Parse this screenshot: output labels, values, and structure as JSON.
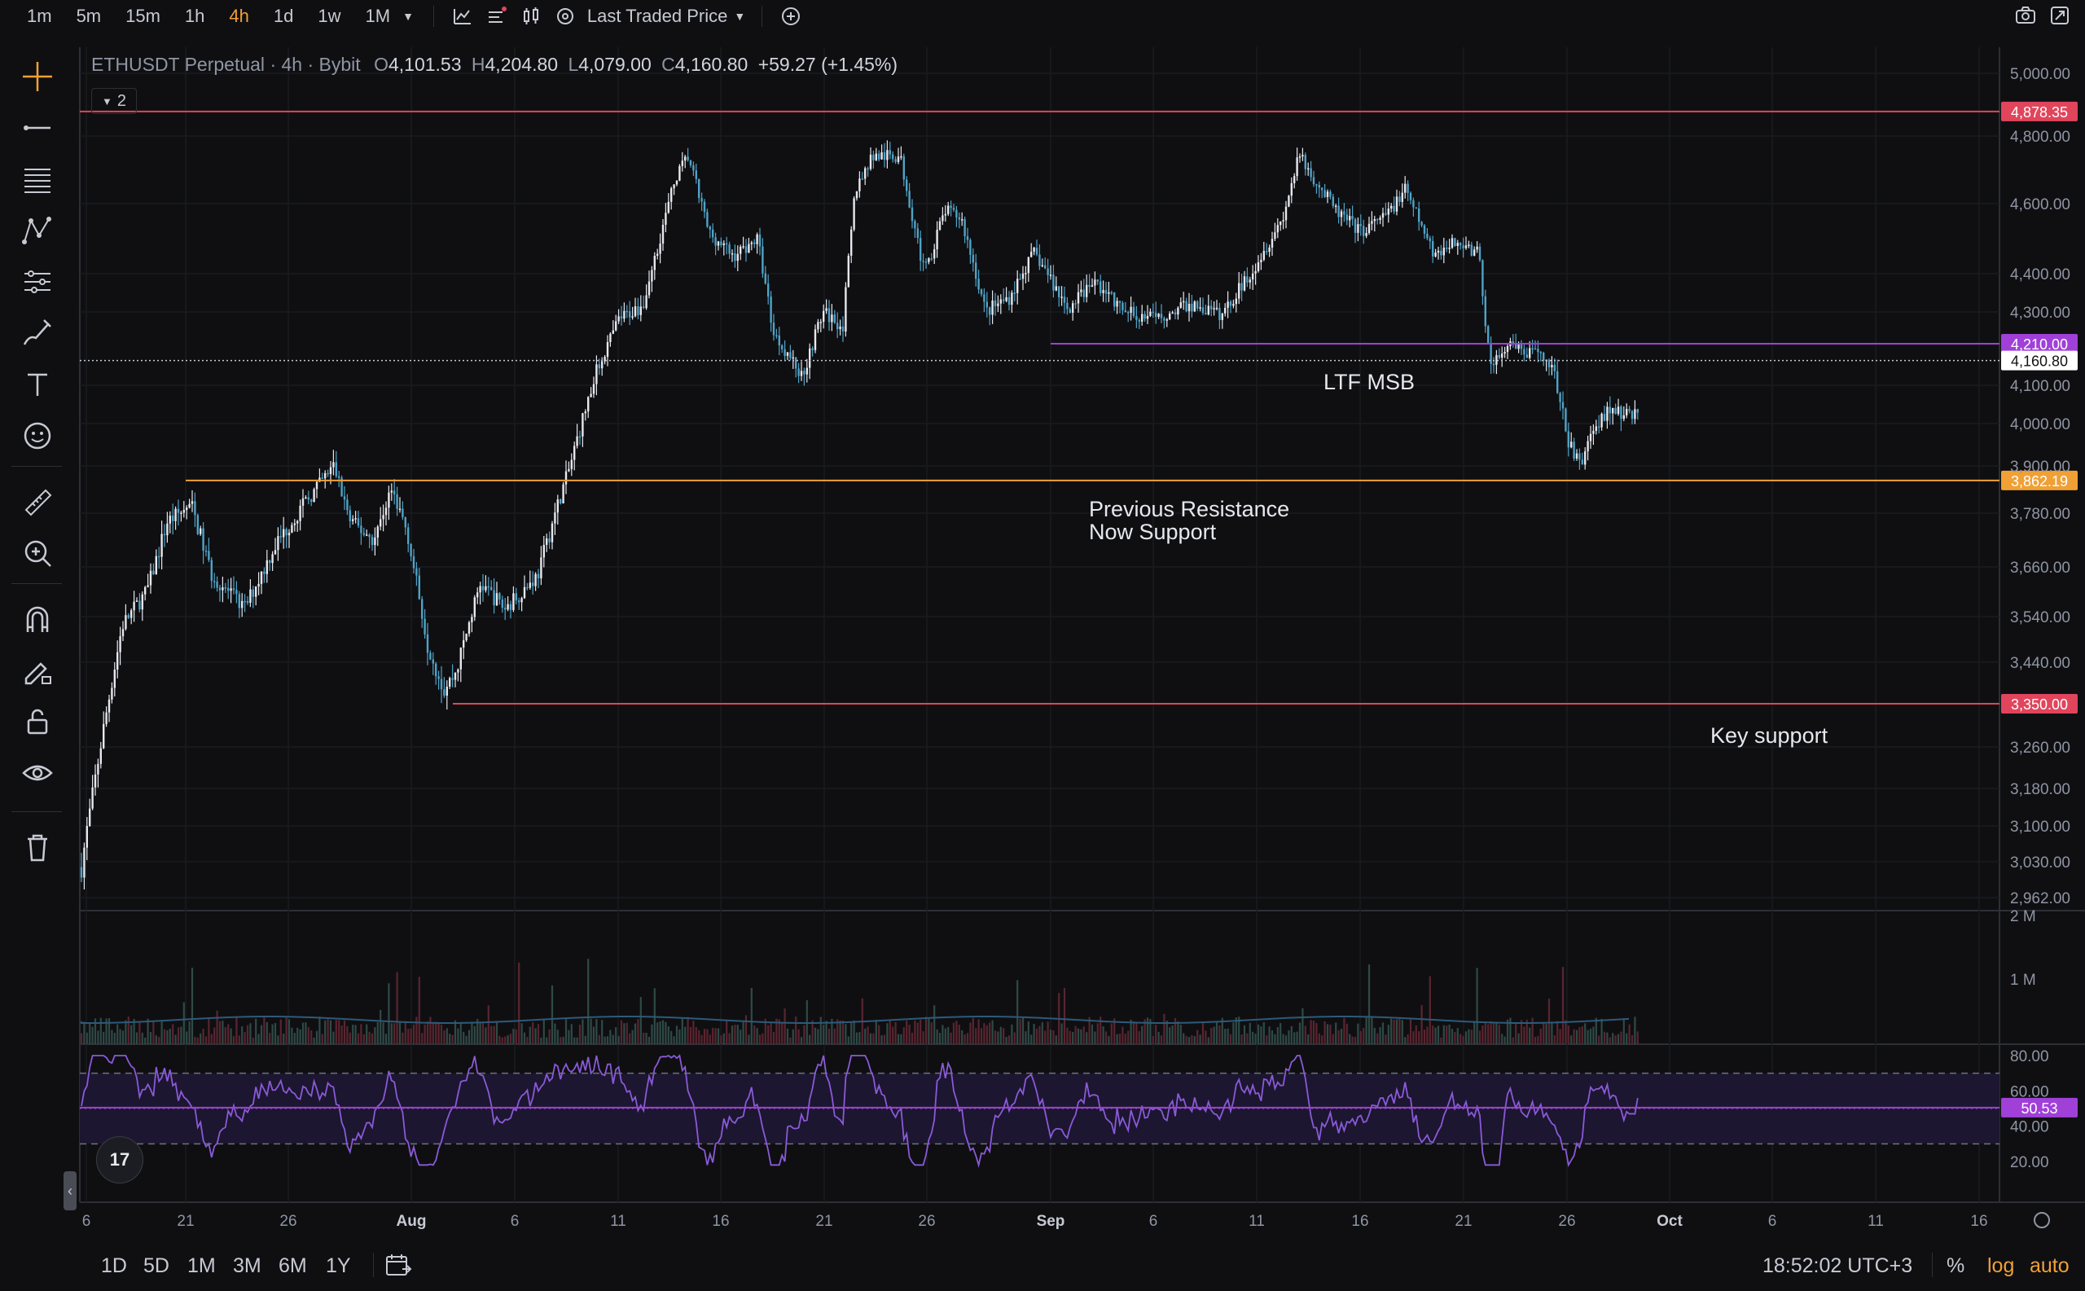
{
  "toolbar": {
    "timeframes": [
      "1m",
      "5m",
      "15m",
      "1h",
      "4h",
      "1d",
      "1w",
      "1M"
    ],
    "active_timeframe": "4h",
    "price_source": "Last Traded Price"
  },
  "legend": {
    "symbol": "ETHUSDT Perpetual",
    "interval": "4h",
    "exchange": "Bybit",
    "o_label": "O",
    "open": "4,101.53",
    "h_label": "H",
    "high": "4,204.80",
    "l_label": "L",
    "low": "4,079.00",
    "c_label": "C",
    "close": "4,160.80",
    "change": "+59.27 (+1.45%)",
    "collapsed_count": "2"
  },
  "price_axis": {
    "labels": [
      "5,000.00",
      "4,800.00",
      "4,600.00",
      "4,400.00",
      "4,300.00",
      "4,100.00",
      "4,000.00",
      "3,900.00",
      "3,780.00",
      "3,660.00",
      "3,540.00",
      "3,440.00",
      "3,260.00",
      "3,180.00",
      "3,100.00",
      "3,030.00",
      "2,962.00"
    ],
    "tags": [
      {
        "value": "4,878.35",
        "color": "#e0455c"
      },
      {
        "value": "4,210.00",
        "color": "#a040d8"
      },
      {
        "value": "4,160.80",
        "color": "#ffffff"
      },
      {
        "value": "3,862.19",
        "color": "#f0a035"
      },
      {
        "value": "3,350.00",
        "color": "#e0455c"
      }
    ]
  },
  "volume_axis": [
    "2 M",
    "1 M"
  ],
  "rsi_axis": {
    "labels": [
      "80.00",
      "60.00",
      "40.00",
      "20.00"
    ],
    "current": "50.53"
  },
  "time_axis": [
    "6",
    "21",
    "26",
    "Aug",
    "6",
    "11",
    "16",
    "21",
    "26",
    "Sep",
    "6",
    "11",
    "16",
    "21",
    "26",
    "Oct",
    "6",
    "11",
    "16"
  ],
  "annotations": {
    "ltf_msb": "LTF MSB",
    "prev_res_1": "Previous Resistance",
    "prev_res_2": "Now Support",
    "key_support": "Key support"
  },
  "bottom": {
    "ranges": [
      "1D",
      "5D",
      "1M",
      "3M",
      "6M",
      "1Y"
    ],
    "clock": "18:52:02 UTC+3",
    "percent": "%",
    "log": "log",
    "auto": "auto"
  },
  "logo": "17",
  "colors": {
    "up": "#e6e8ee",
    "down": "#4fa3c7",
    "rsi": "#8a5ad8",
    "resistance": "#e0455c",
    "support": "#f0a035",
    "msb": "#a040d8"
  }
}
